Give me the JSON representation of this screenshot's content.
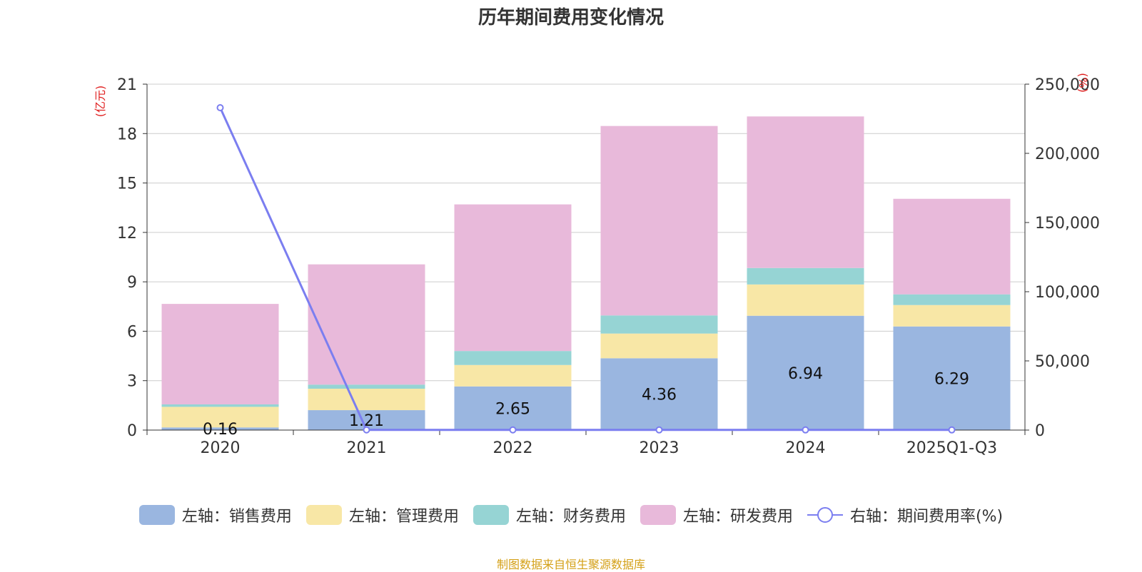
{
  "chart_data": {
    "type": "bar",
    "title": "历年期间费用变化情况",
    "categories": [
      "2020",
      "2021",
      "2022",
      "2023",
      "2024",
      "2025Q1-Q3"
    ],
    "series": [
      {
        "name": "左轴：销售费用",
        "axis": "left",
        "color": "#9ab6e0",
        "values": [
          0.16,
          1.21,
          2.65,
          4.36,
          6.94,
          6.29
        ]
      },
      {
        "name": "左轴：管理费用",
        "axis": "left",
        "color": "#f8e7a6",
        "values": [
          1.25,
          1.3,
          1.3,
          1.5,
          1.9,
          1.3
        ]
      },
      {
        "name": "左轴：财务费用",
        "axis": "left",
        "color": "#96d4d4",
        "values": [
          0.15,
          0.25,
          0.85,
          1.1,
          1.0,
          0.65
        ]
      },
      {
        "name": "左轴：研发费用",
        "axis": "left",
        "color": "#e8b9da",
        "values": [
          6.1,
          7.3,
          8.9,
          11.5,
          9.2,
          5.8
        ]
      },
      {
        "name": "右轴：期间费用率(%)",
        "axis": "right",
        "type": "line",
        "color": "#7b7ef0",
        "values": [
          233000,
          150,
          120,
          110,
          105,
          110
        ]
      }
    ],
    "data_labels": [
      "0.16",
      "1.21",
      "2.65",
      "4.36",
      "6.94",
      "6.29"
    ],
    "left_axis": {
      "label": "(亿元)",
      "ylim": [
        0,
        21
      ],
      "ticks": [
        "0",
        "3",
        "6",
        "9",
        "12",
        "15",
        "18",
        "21"
      ],
      "tick_values": [
        0,
        3,
        6,
        9,
        12,
        15,
        18,
        21
      ]
    },
    "right_axis": {
      "label": "(%)",
      "ylim": [
        0,
        250000
      ],
      "ticks": [
        "0",
        "50,000",
        "100,000",
        "150,000",
        "200,000",
        "250,000"
      ],
      "tick_values": [
        0,
        50000,
        100000,
        150000,
        200000,
        250000
      ]
    },
    "grid": true,
    "legend_position": "bottom"
  },
  "source_note": "制图数据来自恒生聚源数据库"
}
